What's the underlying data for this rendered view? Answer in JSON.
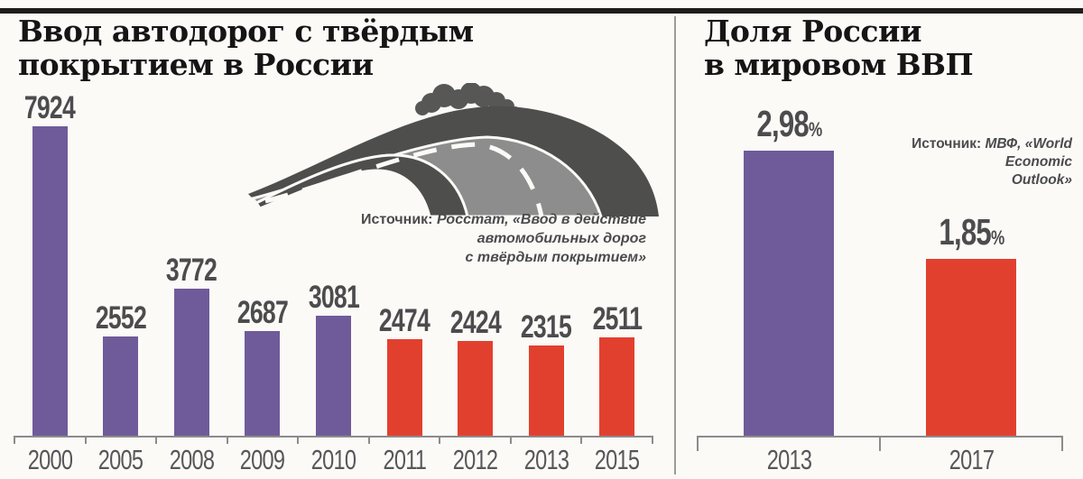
{
  "left_panel": {
    "title_line1": "Ввод автодорог с твёрдым",
    "title_line2": "покрытием в России",
    "source_prefix": "Источник:",
    "source_line1": "Росстат, «Ввод в действие автомобильных дорог",
    "source_line2": "с твёрдым покрытием»"
  },
  "right_panel": {
    "title_line1": "Доля России",
    "title_line2": "в мировом ВВП",
    "source_prefix": "Источник:",
    "source_line1": "МВФ, «World Economic",
    "source_line2": "Outlook»"
  },
  "palette": {
    "purple": "#6f5b99",
    "red": "#e2402f",
    "value_label_color": "#4c4c4e",
    "year_label_color": "#57575a",
    "axis_color": "#8b8b8b",
    "top_rule_color": "#1d1d1b"
  },
  "chart_data": [
    {
      "type": "bar",
      "title": "Ввод автодорог с твёрдым покрытием в России",
      "categories": [
        "2000",
        "2005",
        "2008",
        "2009",
        "2010",
        "2011",
        "2012",
        "2013",
        "2015"
      ],
      "values": [
        7924,
        2552,
        3772,
        2687,
        3081,
        2474,
        2424,
        2315,
        2511
      ],
      "value_labels": [
        "7924",
        "2552",
        "3772",
        "2687",
        "3081",
        "2474",
        "2424",
        "2315",
        "2511"
      ],
      "bar_colors": [
        "purple",
        "purple",
        "purple",
        "purple",
        "purple",
        "red",
        "red",
        "red",
        "red"
      ],
      "xlabel": "",
      "ylabel": "",
      "ylim": [
        0,
        7924
      ],
      "grid": false,
      "legend": false
    },
    {
      "type": "bar",
      "title": "Доля России в мировом ВВП",
      "categories": [
        "2013",
        "2017"
      ],
      "values": [
        2.98,
        1.85
      ],
      "value_labels": [
        "2,98",
        "1,85"
      ],
      "value_suffix": "%",
      "bar_colors": [
        "purple",
        "red"
      ],
      "xlabel": "",
      "ylabel": "",
      "ylim": [
        0,
        2.98
      ],
      "grid": false,
      "legend": false
    }
  ]
}
